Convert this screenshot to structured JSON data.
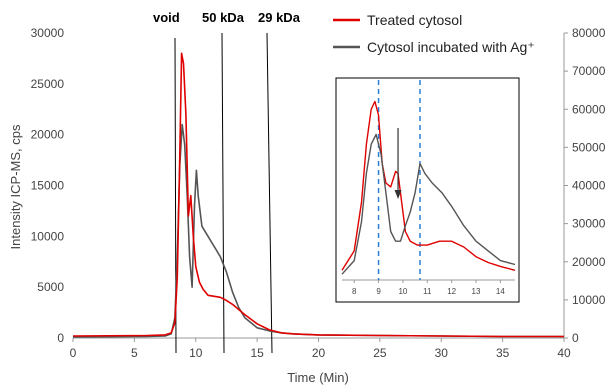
{
  "chart_data": {
    "type": "line",
    "xlabel": "Time (Min)",
    "ylabel": "Intensity ICP-MS, cps",
    "xlim": [
      0,
      40
    ],
    "ylim_left": [
      0,
      30000
    ],
    "ylim_right": [
      0,
      80000
    ],
    "x_ticks": [
      "0",
      "5",
      "10",
      "15",
      "20",
      "25",
      "30",
      "35",
      "40"
    ],
    "y_ticks_left": [
      "0",
      "5000",
      "10000",
      "15000",
      "20000",
      "25000",
      "30000"
    ],
    "y_ticks_right": [
      "0",
      "10000",
      "20000",
      "30000",
      "40000",
      "50000",
      "60000",
      "70000",
      "80000"
    ],
    "grid": false,
    "legend_position": "top-right",
    "annotations": [
      {
        "label": "void",
        "x": 8.3
      },
      {
        "label": "50 kDa",
        "x": 12.3
      },
      {
        "label": "29 kDa",
        "x": 16.0
      }
    ],
    "series": [
      {
        "name": "Treated cytosol",
        "color": "#e00000",
        "axis": "left",
        "x": [
          0,
          6,
          7.5,
          8.0,
          8.3,
          8.5,
          8.7,
          8.85,
          9.0,
          9.2,
          9.4,
          9.6,
          9.8,
          10.0,
          10.3,
          10.6,
          11.0,
          11.5,
          12.0,
          12.5,
          13.0,
          13.5,
          14.0,
          15.0,
          16.0,
          17.0,
          18.0,
          20.0,
          25.0,
          30.0,
          35.0,
          40.0
        ],
        "y": [
          200,
          250,
          300,
          500,
          1500,
          6000,
          18000,
          28000,
          27000,
          22000,
          12000,
          14000,
          10000,
          7000,
          5500,
          4800,
          4200,
          4100,
          4000,
          3700,
          3300,
          2800,
          2300,
          1400,
          800,
          500,
          400,
          300,
          250,
          200,
          150,
          150
        ]
      },
      {
        "name": "Cytosol incubated with Ag⁺",
        "color": "#555555",
        "axis": "left",
        "x": [
          0,
          6,
          7.5,
          8.0,
          8.3,
          8.5,
          8.7,
          8.9,
          9.1,
          9.3,
          9.5,
          9.7,
          9.9,
          10.05,
          10.2,
          10.5,
          11.0,
          11.5,
          12.0,
          12.5,
          13.0,
          13.5,
          14.0,
          14.5,
          15.0,
          16.0,
          17.0,
          18.0,
          20.0,
          25.0,
          30.0,
          35.0,
          40.0
        ],
        "y": [
          100,
          150,
          200,
          400,
          2000,
          8000,
          17000,
          21000,
          19000,
          14000,
          8000,
          5000,
          13000,
          16500,
          14000,
          11000,
          10000,
          9000,
          8000,
          6500,
          4500,
          3000,
          2000,
          1500,
          1000,
          700,
          500,
          400,
          300,
          250,
          200,
          150,
          150
        ]
      }
    ],
    "inset": {
      "x_ticks": [
        "8",
        "9",
        "10",
        "11",
        "12",
        "13",
        "14"
      ],
      "xlim": [
        7.5,
        14.6
      ],
      "dashed_lines_x": [
        9.0,
        10.7
      ],
      "arrow_x": 9.8,
      "series": [
        {
          "color": "#e00000",
          "x": [
            7.5,
            8.0,
            8.3,
            8.5,
            8.7,
            8.85,
            9.0,
            9.15,
            9.3,
            9.5,
            9.7,
            9.8,
            9.95,
            10.1,
            10.3,
            10.6,
            11.0,
            11.5,
            12.0,
            12.5,
            13.0,
            13.5,
            14.0,
            14.6
          ],
          "y": [
            0.05,
            0.15,
            0.4,
            0.7,
            0.88,
            0.92,
            0.85,
            0.6,
            0.5,
            0.48,
            0.56,
            0.55,
            0.4,
            0.25,
            0.2,
            0.18,
            0.18,
            0.2,
            0.2,
            0.17,
            0.12,
            0.09,
            0.07,
            0.05
          ]
        },
        {
          "color": "#555555",
          "x": [
            7.5,
            8.0,
            8.3,
            8.5,
            8.7,
            8.9,
            9.1,
            9.3,
            9.5,
            9.7,
            9.9,
            10.1,
            10.3,
            10.5,
            10.7,
            10.9,
            11.2,
            11.6,
            12.0,
            12.5,
            13.0,
            13.5,
            14.0,
            14.6
          ],
          "y": [
            0.03,
            0.1,
            0.3,
            0.55,
            0.7,
            0.75,
            0.65,
            0.45,
            0.25,
            0.2,
            0.2,
            0.28,
            0.35,
            0.45,
            0.6,
            0.55,
            0.5,
            0.45,
            0.38,
            0.28,
            0.2,
            0.15,
            0.1,
            0.08
          ]
        }
      ]
    }
  }
}
